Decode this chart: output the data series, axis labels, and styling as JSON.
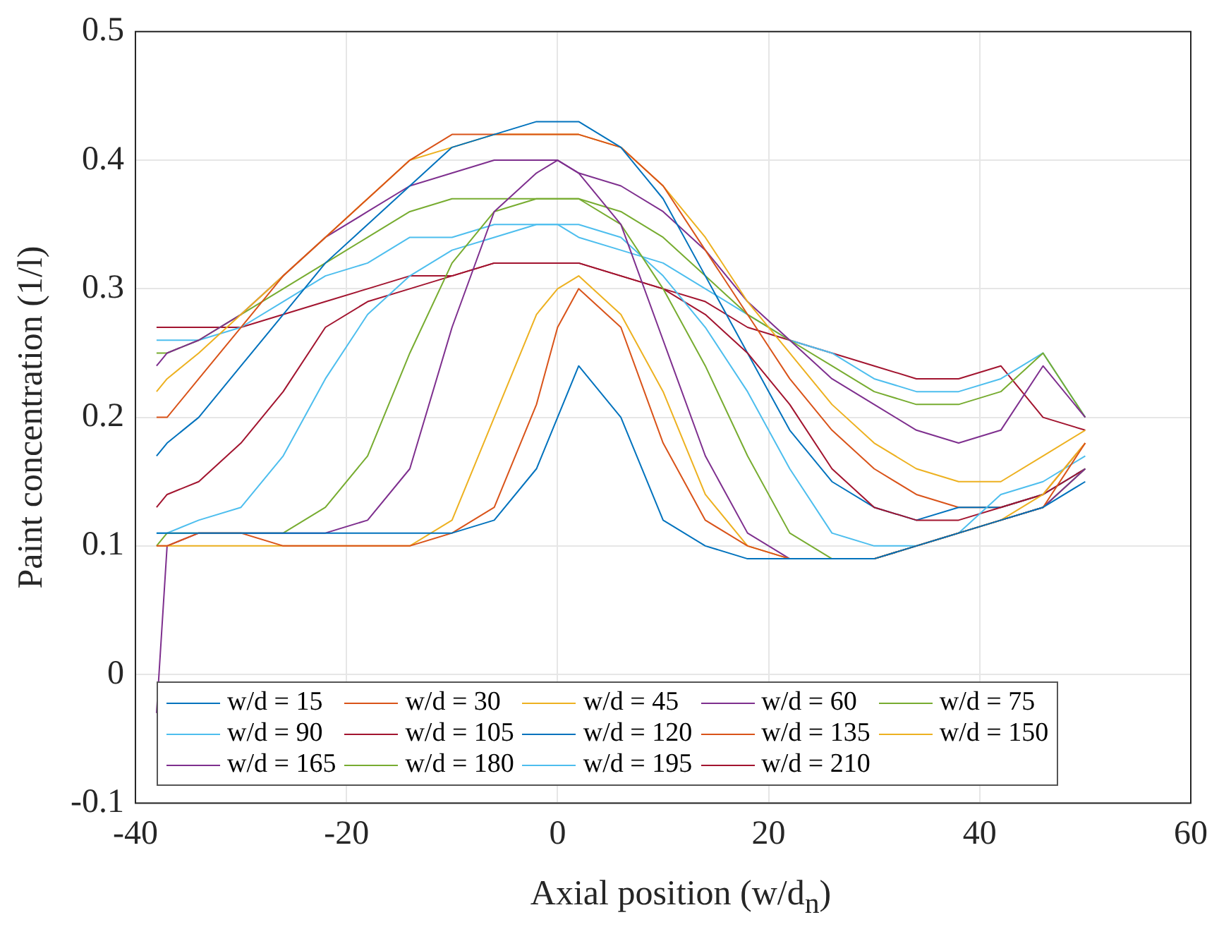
{
  "chart_data": {
    "type": "line",
    "xlabel": "Axial position (w/d$_{n}$)",
    "ylabel": "Paint concentration (1/l)",
    "x": [
      -38,
      -37,
      -34,
      -30,
      -26,
      -22,
      -18,
      -14,
      -10,
      -6,
      -2,
      0,
      2,
      6,
      10,
      14,
      18,
      22,
      26,
      30,
      34,
      38,
      42,
      46,
      50
    ],
    "xlim": [
      -40,
      60
    ],
    "xticks": [
      -40,
      -20,
      0,
      20,
      40,
      60
    ],
    "ylim": [
      -0.1,
      0.5
    ],
    "yticks": [
      -0.1,
      0,
      0.1,
      0.2,
      0.3,
      0.4,
      0.5
    ],
    "grid": true,
    "legend": "bottom",
    "marker": "none",
    "line_style": "solid",
    "series": [
      {
        "name": "w/d = 15",
        "color": "#0072bd",
        "values": [
          0.11,
          0.11,
          0.11,
          0.11,
          0.11,
          0.11,
          0.11,
          0.11,
          0.11,
          0.12,
          0.16,
          0.2,
          0.24,
          0.2,
          0.12,
          0.1,
          0.09,
          0.09,
          0.09,
          0.09,
          0.1,
          0.11,
          0.12,
          0.13,
          0.15
        ]
      },
      {
        "name": "w/d = 30",
        "color": "#d95319",
        "values": [
          0.1,
          0.1,
          0.11,
          0.11,
          0.1,
          0.1,
          0.1,
          0.1,
          0.11,
          0.13,
          0.21,
          0.27,
          0.3,
          0.27,
          0.18,
          0.12,
          0.1,
          0.09,
          0.09,
          0.09,
          0.1,
          0.11,
          0.12,
          0.13,
          0.18
        ]
      },
      {
        "name": "w/d = 45",
        "color": "#edb120",
        "values": [
          0.1,
          0.1,
          0.1,
          0.1,
          0.1,
          0.1,
          0.1,
          0.1,
          0.12,
          0.2,
          0.28,
          0.3,
          0.31,
          0.28,
          0.22,
          0.14,
          0.1,
          0.09,
          0.09,
          0.09,
          0.1,
          0.11,
          0.12,
          0.14,
          0.18
        ]
      },
      {
        "name": "w/d = 60",
        "color": "#7e2f8e",
        "values": [
          -0.03,
          0.1,
          0.11,
          0.11,
          0.11,
          0.11,
          0.12,
          0.16,
          0.27,
          0.36,
          0.39,
          0.4,
          0.39,
          0.35,
          0.26,
          0.17,
          0.11,
          0.09,
          0.09,
          0.09,
          0.1,
          0.11,
          0.12,
          0.13,
          0.16
        ]
      },
      {
        "name": "w/d = 75",
        "color": "#77ac30",
        "values": [
          0.1,
          0.11,
          0.11,
          0.11,
          0.11,
          0.13,
          0.17,
          0.25,
          0.32,
          0.36,
          0.37,
          0.37,
          0.37,
          0.35,
          0.3,
          0.24,
          0.17,
          0.11,
          0.09,
          0.09,
          0.1,
          0.11,
          0.12,
          0.13,
          0.16
        ]
      },
      {
        "name": "w/d = 90",
        "color": "#4dbeee",
        "values": [
          0.11,
          0.11,
          0.12,
          0.13,
          0.17,
          0.23,
          0.28,
          0.31,
          0.33,
          0.34,
          0.35,
          0.35,
          0.35,
          0.34,
          0.31,
          0.27,
          0.22,
          0.16,
          0.11,
          0.1,
          0.1,
          0.11,
          0.14,
          0.15,
          0.17
        ]
      },
      {
        "name": "w/d = 105",
        "color": "#a2142f",
        "values": [
          0.13,
          0.14,
          0.15,
          0.18,
          0.22,
          0.27,
          0.29,
          0.3,
          0.31,
          0.32,
          0.32,
          0.32,
          0.32,
          0.31,
          0.3,
          0.28,
          0.25,
          0.21,
          0.16,
          0.13,
          0.12,
          0.12,
          0.13,
          0.14,
          0.16
        ]
      },
      {
        "name": "w/d = 120",
        "color": "#0072bd",
        "values": [
          0.17,
          0.18,
          0.2,
          0.24,
          0.28,
          0.32,
          0.35,
          0.38,
          0.41,
          0.42,
          0.43,
          0.43,
          0.43,
          0.41,
          0.37,
          0.31,
          0.25,
          0.19,
          0.15,
          0.13,
          0.12,
          0.13,
          0.13,
          0.14,
          0.16
        ]
      },
      {
        "name": "w/d = 135",
        "color": "#d95319",
        "values": [
          0.2,
          0.2,
          0.23,
          0.27,
          0.31,
          0.34,
          0.37,
          0.4,
          0.42,
          0.42,
          0.42,
          0.42,
          0.42,
          0.41,
          0.38,
          0.33,
          0.28,
          0.23,
          0.19,
          0.16,
          0.14,
          0.13,
          0.13,
          0.14,
          0.18
        ]
      },
      {
        "name": "w/d = 150",
        "color": "#edb120",
        "values": [
          0.22,
          0.23,
          0.25,
          0.28,
          0.31,
          0.34,
          0.37,
          0.4,
          0.41,
          0.42,
          0.42,
          0.42,
          0.42,
          0.41,
          0.38,
          0.34,
          0.29,
          0.25,
          0.21,
          0.18,
          0.16,
          0.15,
          0.15,
          0.17,
          0.19
        ]
      },
      {
        "name": "w/d = 165",
        "color": "#7e2f8e",
        "values": [
          0.24,
          0.25,
          0.26,
          0.28,
          0.31,
          0.34,
          0.36,
          0.38,
          0.39,
          0.4,
          0.4,
          0.4,
          0.39,
          0.38,
          0.36,
          0.33,
          0.29,
          0.26,
          0.23,
          0.21,
          0.19,
          0.18,
          0.19,
          0.24,
          0.2
        ]
      },
      {
        "name": "w/d = 180",
        "color": "#77ac30",
        "values": [
          0.25,
          0.25,
          0.26,
          0.28,
          0.3,
          0.32,
          0.34,
          0.36,
          0.37,
          0.37,
          0.37,
          0.37,
          0.37,
          0.36,
          0.34,
          0.31,
          0.28,
          0.26,
          0.24,
          0.22,
          0.21,
          0.21,
          0.22,
          0.25,
          0.2
        ]
      },
      {
        "name": "w/d = 195",
        "color": "#4dbeee",
        "values": [
          0.26,
          0.26,
          0.26,
          0.27,
          0.29,
          0.31,
          0.32,
          0.34,
          0.34,
          0.35,
          0.35,
          0.35,
          0.34,
          0.33,
          0.32,
          0.3,
          0.28,
          0.26,
          0.25,
          0.23,
          0.22,
          0.22,
          0.23,
          0.25,
          0.2
        ]
      },
      {
        "name": "w/d = 210",
        "color": "#a2142f",
        "values": [
          0.27,
          0.27,
          0.27,
          0.27,
          0.28,
          0.29,
          0.3,
          0.31,
          0.31,
          0.32,
          0.32,
          0.32,
          0.32,
          0.31,
          0.3,
          0.29,
          0.27,
          0.26,
          0.25,
          0.24,
          0.23,
          0.23,
          0.24,
          0.2,
          0.19
        ]
      }
    ]
  }
}
